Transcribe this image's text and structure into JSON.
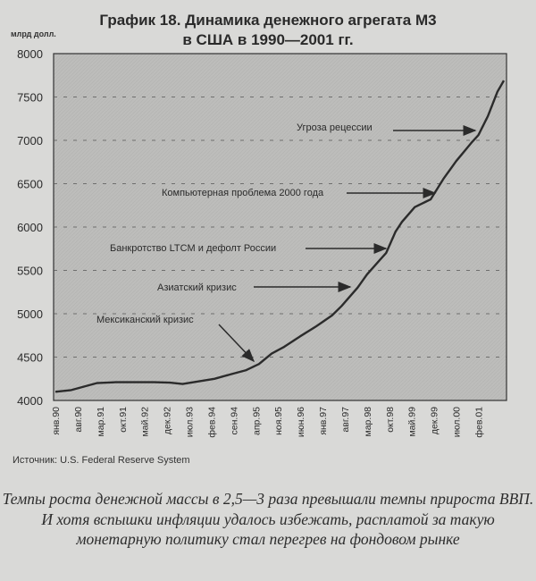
{
  "chart_data": {
    "type": "line",
    "title": "График 18. Динамика денежного агрегата М3",
    "subtitle": "в США в 1990—2001 гг.",
    "ylabel": "млрд долл.",
    "xlabel": "",
    "ylim": [
      4000,
      8000
    ],
    "yticks": [
      4000,
      4500,
      5000,
      5500,
      6000,
      6500,
      7000,
      7500,
      8000
    ],
    "xtick_labels": [
      "янв.90",
      "авг.90",
      "мар.91",
      "окт.91",
      "май.92",
      "дек.92",
      "июл.93",
      "фев.94",
      "сен.94",
      "апр.95",
      "ноя.95",
      "июн.96",
      "янв.97",
      "авг.97",
      "мар.98",
      "окт.98",
      "май.99",
      "дек.99",
      "июл.00",
      "фев.01"
    ],
    "grid": "horizontal dashed",
    "series": [
      {
        "points": [
          [
            "1990-01",
            4100
          ],
          [
            "1990-06",
            4120
          ],
          [
            "1990-10",
            4160
          ],
          [
            "1991-02",
            4200
          ],
          [
            "1991-08",
            4210
          ],
          [
            "1992-02",
            4210
          ],
          [
            "1992-08",
            4210
          ],
          [
            "1993-01",
            4205
          ],
          [
            "1993-05",
            4190
          ],
          [
            "1993-10",
            4220
          ],
          [
            "1994-03",
            4250
          ],
          [
            "1994-08",
            4300
          ],
          [
            "1995-01",
            4350
          ],
          [
            "1995-05",
            4420
          ],
          [
            "1995-09",
            4540
          ],
          [
            "1996-01",
            4620
          ],
          [
            "1996-06",
            4740
          ],
          [
            "1996-11",
            4855
          ],
          [
            "1997-04",
            4980
          ],
          [
            "1997-07",
            5090
          ],
          [
            "1997-12",
            5300
          ],
          [
            "1998-03",
            5455
          ],
          [
            "1998-07",
            5620
          ],
          [
            "1998-09",
            5700
          ],
          [
            "1998-12",
            5950
          ],
          [
            "1999-02",
            6060
          ],
          [
            "1999-06",
            6230
          ],
          [
            "1999-11",
            6320
          ],
          [
            "2000-03",
            6555
          ],
          [
            "2000-07",
            6760
          ],
          [
            "2000-12",
            6980
          ],
          [
            "2001-02",
            7060
          ],
          [
            "2001-05",
            7280
          ],
          [
            "2001-08",
            7560
          ],
          [
            "2001-10",
            7690
          ]
        ]
      }
    ],
    "annotations": [
      {
        "text": "Угроза рецессии",
        "points_to": "2001-02"
      },
      {
        "text": "Компьютерная проблема 2000 года",
        "points_to": "1999-11"
      },
      {
        "text": "Банкротство LTCM и дефолт России",
        "points_to": "1998-09"
      },
      {
        "text": "Азиатский кризис",
        "points_to": "1997-07"
      },
      {
        "text": "Мексиканский кризис",
        "points_to": "1995-05"
      }
    ],
    "source": "Источник: U.S. Federal Reserve System"
  },
  "caption": "Темпы роста денежной массы в 2,5—3 раза превышали темпы прироста ВВП. И хотя вспышки инфляции удалось избежать, расплатой за такую монетарную политику стал перегрев на фондовом рынке",
  "colors": {
    "page": "#d9d9d7",
    "plot": "#bdbdbb",
    "line": "#2b2b2b"
  }
}
